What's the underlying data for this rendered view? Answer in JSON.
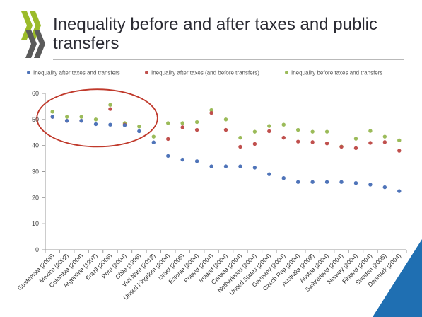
{
  "title": "Inequality before and after taxes and public transfers",
  "colors": {
    "after_taxes_and_transfers": "#4f74b9",
    "after_taxes_before_transfers": "#c0504d",
    "before_taxes_and_transfers": "#9bbb59",
    "highlight_ellipse": "#c0392b",
    "logo_green": "#9bbb2a",
    "logo_gray": "#5b5b5b",
    "corner_blue": "#1f6fb2"
  },
  "chart_data": {
    "type": "scatter",
    "title": "Inequality before and after taxes and public transfers",
    "xlabel": "",
    "ylabel": "",
    "ylim": [
      0,
      60
    ],
    "yticks": [
      0,
      10,
      20,
      30,
      40,
      50,
      60
    ],
    "grid": false,
    "legend": "top",
    "categories": [
      "Guatemala (2006)",
      "Mexico (2002)",
      "Colombia (2004)",
      "Argentina (1997)",
      "Brazil (2006)",
      "Peru (2004)",
      "Chile (1996)",
      "Viet Nam (2012)",
      "United Kingdom (2004)",
      "Israel (2005)",
      "Estonia (2004)",
      "Poland (2004)",
      "Ireland (2004)",
      "Canada (2004)",
      "Netherlands (2004)",
      "United States (2004)",
      "Germany (2004)",
      "Czech Rep (2004)",
      "Australia (2003)",
      "Austria (2004)",
      "Switzerland (2004)",
      "Norway (2004)",
      "Finland (2004)",
      "Sweden (2005)",
      "Denmark (2004)"
    ],
    "series": [
      {
        "name": "Inequality after taxes and transfers",
        "color_key": "after_taxes_and_transfers",
        "values": [
          51,
          49.5,
          49.5,
          48.2,
          48,
          47.8,
          45.5,
          41.2,
          36,
          34.6,
          34,
          32,
          32,
          32,
          31.5,
          29,
          27.5,
          26,
          26,
          26,
          26,
          25.6,
          25,
          24,
          22.5
        ]
      },
      {
        "name": "Inequality after taxes (and before transfers)",
        "color_key": "after_taxes_before_transfers",
        "values": [
          51,
          49.5,
          49.5,
          null,
          54,
          48,
          null,
          null,
          42.5,
          47,
          46,
          52.5,
          46,
          39.5,
          40.6,
          45.5,
          43,
          41.5,
          41.3,
          40.8,
          39.5,
          39,
          41,
          41.3,
          38
        ]
      },
      {
        "name": "Inequality before taxes and transfers",
        "color_key": "before_taxes_and_transfers",
        "values": [
          53,
          51,
          51,
          50,
          55.6,
          48.6,
          47.3,
          43.4,
          48.6,
          48.6,
          49,
          53.6,
          50,
          43,
          45.3,
          47.5,
          48,
          46,
          45.3,
          45.3,
          39.6,
          42.6,
          45.6,
          43.4,
          42
        ]
      }
    ],
    "annotations": [
      {
        "shape": "ellipse",
        "encloses": [
          "Guatemala (2006)",
          "Mexico (2002)",
          "Colombia (2004)",
          "Argentina (1997)",
          "Brazil (2006)",
          "Peru (2004)",
          "Chile (1996)"
        ]
      }
    ]
  }
}
